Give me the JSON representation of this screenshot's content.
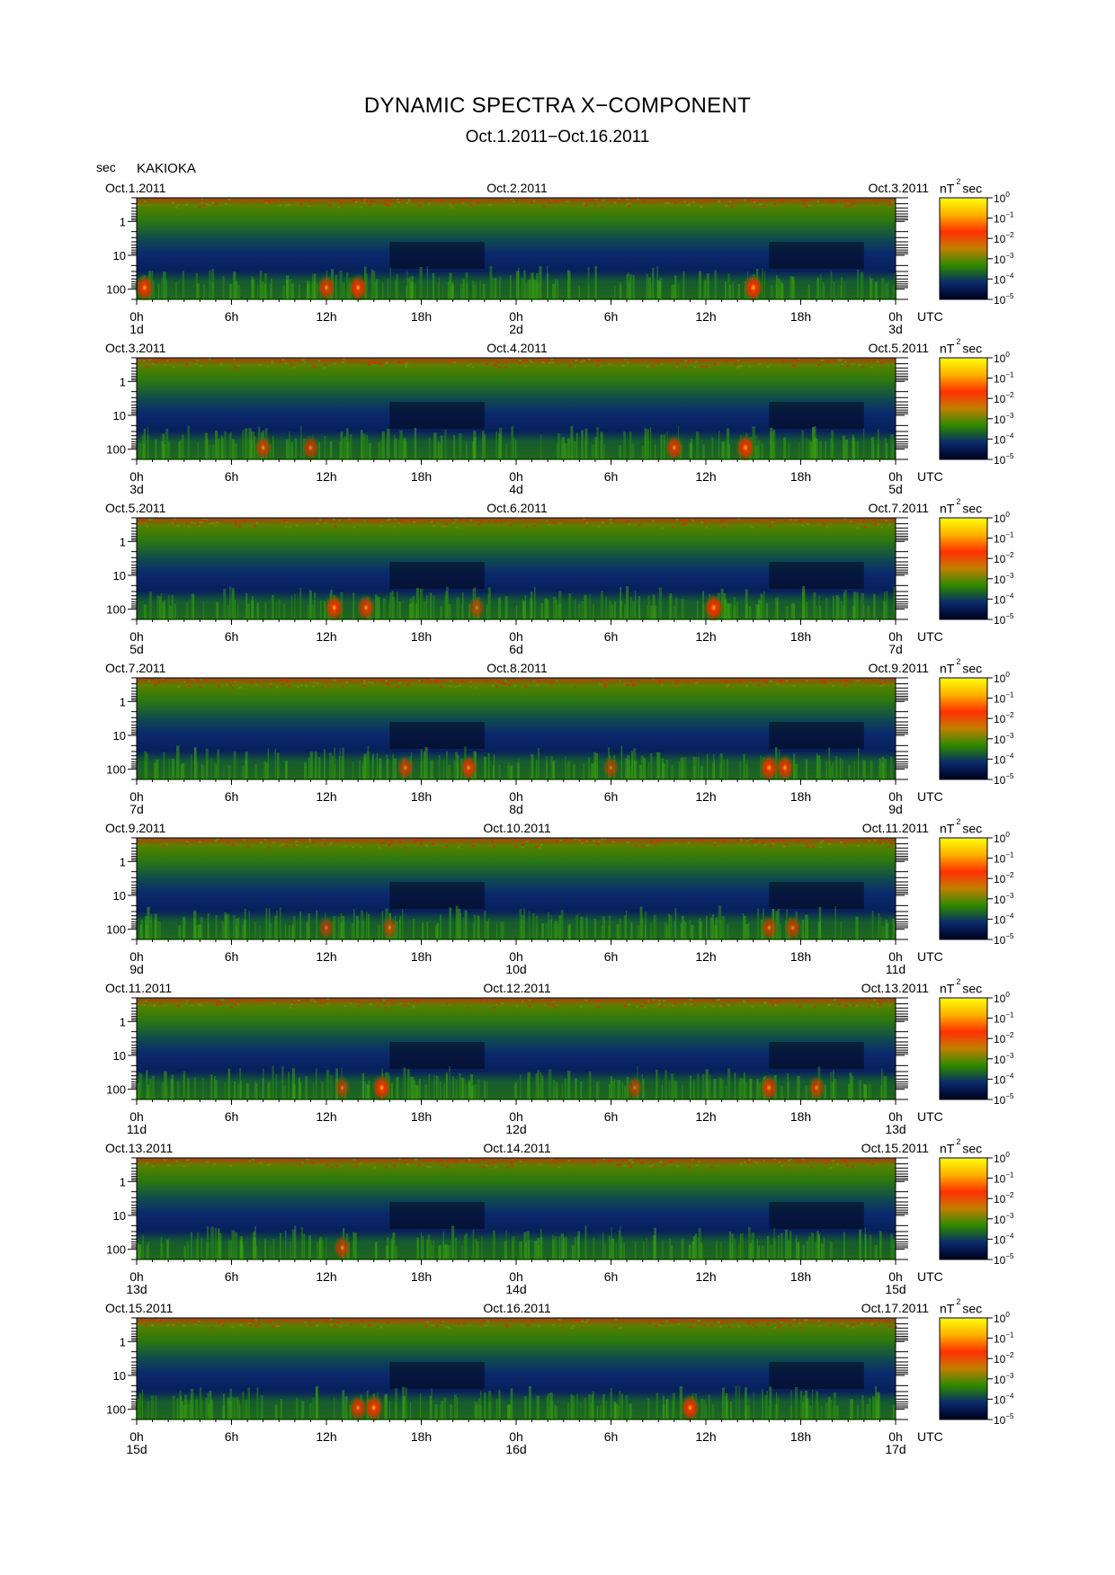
{
  "title": "DYNAMIC SPECTRA X−COMPONENT",
  "subtitle": "Oct.1.2011−Oct.16.2011",
  "y_unit_label": "sec",
  "station": "KAKIOKA",
  "colorbar": {
    "unit_label_base": "nT",
    "unit_label_exp": "2",
    "unit_label_tail": "sec",
    "tick_labels": [
      "10",
      "10",
      "10",
      "10",
      "10",
      "10"
    ],
    "tick_exponents": [
      "0",
      "−1",
      "−2",
      "−3",
      "−4",
      "−5"
    ],
    "colors": [
      "#ffff00",
      "#ffb000",
      "#ff3000",
      "#c08000",
      "#2c8a00",
      "#0a2a6e",
      "#000018"
    ]
  },
  "chart_data": {
    "type": "heatmap",
    "x_tick_labels": [
      "0h",
      "6h",
      "12h",
      "18h",
      "0h",
      "6h",
      "12h",
      "18h",
      "0h"
    ],
    "x_unit": "UTC",
    "y_tick_labels": [
      "1",
      "10",
      "100"
    ],
    "y_scale": "log",
    "y_range_sec": [
      0.2,
      200
    ],
    "color_range": [
      1e-05,
      1
    ],
    "panels": [
      {
        "start_date": "Oct.1.2011",
        "mid_date": "Oct.2.2011",
        "end_date": "Oct.3.2011",
        "day_labels": [
          "1d",
          "2d",
          "3d"
        ],
        "events": [
          {
            "hour": 0.5,
            "intensity": 0.9
          },
          {
            "hour": 12,
            "intensity": 0.8
          },
          {
            "hour": 14,
            "intensity": 0.9
          },
          {
            "hour": 39,
            "intensity": 0.95
          }
        ]
      },
      {
        "start_date": "Oct.3.2011",
        "mid_date": "Oct.4.2011",
        "end_date": "Oct.5.2011",
        "day_labels": [
          "3d",
          "4d",
          "5d"
        ],
        "events": [
          {
            "hour": 8,
            "intensity": 0.7
          },
          {
            "hour": 11,
            "intensity": 0.7
          },
          {
            "hour": 34,
            "intensity": 0.8
          },
          {
            "hour": 38.5,
            "intensity": 0.9
          }
        ]
      },
      {
        "start_date": "Oct.5.2011",
        "mid_date": "Oct.6.2011",
        "end_date": "Oct.7.2011",
        "day_labels": [
          "5d",
          "6d",
          "7d"
        ],
        "events": [
          {
            "hour": 12.5,
            "intensity": 0.9
          },
          {
            "hour": 14.5,
            "intensity": 0.8
          },
          {
            "hour": 21.5,
            "intensity": 0.6
          },
          {
            "hour": 36.5,
            "intensity": 0.95
          }
        ]
      },
      {
        "start_date": "Oct.7.2011",
        "mid_date": "Oct.8.2011",
        "end_date": "Oct.9.2011",
        "day_labels": [
          "7d",
          "8d",
          "9d"
        ],
        "events": [
          {
            "hour": 17,
            "intensity": 0.7
          },
          {
            "hour": 21,
            "intensity": 0.8
          },
          {
            "hour": 30,
            "intensity": 0.6
          },
          {
            "hour": 40,
            "intensity": 0.9
          },
          {
            "hour": 41,
            "intensity": 0.85
          }
        ]
      },
      {
        "start_date": "Oct.9.2011",
        "mid_date": "Oct.10.2011",
        "end_date": "Oct.11.2011",
        "day_labels": [
          "9d",
          "10d",
          "11d"
        ],
        "events": [
          {
            "hour": 12,
            "intensity": 0.6
          },
          {
            "hour": 16,
            "intensity": 0.6
          },
          {
            "hour": 40,
            "intensity": 0.7
          },
          {
            "hour": 41.5,
            "intensity": 0.7
          }
        ]
      },
      {
        "start_date": "Oct.11.2011",
        "mid_date": "Oct.12.2011",
        "end_date": "Oct.13.2011",
        "day_labels": [
          "11d",
          "12d",
          "13d"
        ],
        "events": [
          {
            "hour": 13,
            "intensity": 0.6
          },
          {
            "hour": 15.5,
            "intensity": 0.9
          },
          {
            "hour": 31.5,
            "intensity": 0.6
          },
          {
            "hour": 40,
            "intensity": 0.8
          },
          {
            "hour": 43,
            "intensity": 0.7
          }
        ]
      },
      {
        "start_date": "Oct.13.2011",
        "mid_date": "Oct.14.2011",
        "end_date": "Oct.15.2011",
        "day_labels": [
          "13d",
          "14d",
          "15d"
        ],
        "events": [
          {
            "hour": 13,
            "intensity": 0.7
          }
        ]
      },
      {
        "start_date": "Oct.15.2011",
        "mid_date": "Oct.16.2011",
        "end_date": "Oct.17.2011",
        "day_labels": [
          "15d",
          "16d",
          "17d"
        ],
        "events": [
          {
            "hour": 14,
            "intensity": 0.8
          },
          {
            "hour": 15,
            "intensity": 0.9
          },
          {
            "hour": 35,
            "intensity": 0.9
          }
        ]
      }
    ]
  }
}
